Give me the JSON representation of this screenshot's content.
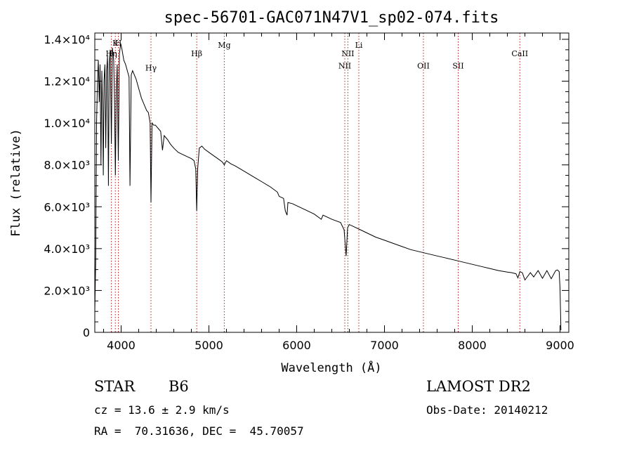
{
  "chart_data": {
    "type": "line",
    "title": "spec-56701-GAC071N47V1_sp02-074.fits",
    "xlabel": "Wavelength (Å)",
    "ylabel": "Flux (relative)",
    "xlim": [
      3700,
      9100
    ],
    "ylim": [
      0,
      14300
    ],
    "x_ticks": [
      {
        "value": 4000,
        "label": "4000"
      },
      {
        "value": 5000,
        "label": "5000"
      },
      {
        "value": 6000,
        "label": "6000"
      },
      {
        "value": 7000,
        "label": "7000"
      },
      {
        "value": 8000,
        "label": "8000"
      },
      {
        "value": 9000,
        "label": "9000"
      }
    ],
    "y_ticks": [
      {
        "value": 0,
        "label": "0"
      },
      {
        "value": 2000,
        "label": "2.0×10³"
      },
      {
        "value": 4000,
        "label": "4.0×10³"
      },
      {
        "value": 6000,
        "label": "6.0×10³"
      },
      {
        "value": 8000,
        "label": "8.0×10³"
      },
      {
        "value": 10000,
        "label": "1.0×10⁴"
      },
      {
        "value": 12000,
        "label": "1.2×10⁴"
      },
      {
        "value": 14000,
        "label": "1.4×10⁴"
      }
    ],
    "lines": [
      {
        "wavelength": 3889,
        "label": "Hη",
        "label_y": 13200
      },
      {
        "wavelength": 3934,
        "label": "K",
        "label_y": 13700
      },
      {
        "wavelength": 3968,
        "label": "H",
        "label_y": 13700
      },
      {
        "wavelength": 4340,
        "label": "Hγ",
        "label_y": 12500
      },
      {
        "wavelength": 4861,
        "label": "Hβ",
        "label_y": 13200
      },
      {
        "wavelength": 5175,
        "label": "Mg",
        "label_y": 13600
      },
      {
        "wavelength": 6548,
        "label": "NII",
        "label_y": 12600
      },
      {
        "wavelength": 6583,
        "label": "NII",
        "label_y": 13200
      },
      {
        "wavelength": 6708,
        "label": "Li",
        "label_y": 13600
      },
      {
        "wavelength": 7444,
        "label": "OII",
        "label_y": 12600
      },
      {
        "wavelength": 7840,
        "label": "SII",
        "label_y": 12600
      },
      {
        "wavelength": 8542,
        "label": "CaII",
        "label_y": 13200
      }
    ],
    "series": [
      {
        "x": [
          3700,
          3710,
          3720,
          3730,
          3740,
          3750,
          3760,
          3770,
          3780,
          3790,
          3797,
          3805,
          3815,
          3825,
          3835,
          3845,
          3855,
          3865,
          3875,
          3889,
          3900,
          3915,
          3925,
          3934,
          3945,
          3955,
          3968,
          3980,
          3995,
          4010,
          4030,
          4050,
          4070,
          4090,
          4101,
          4115,
          4130,
          4150,
          4170,
          4190,
          4210,
          4230,
          4250,
          4270,
          4290,
          4310,
          4330,
          4340,
          4352,
          4370,
          4390,
          4410,
          4430,
          4450,
          4471,
          4490,
          4510,
          4530,
          4560,
          4600,
          4650,
          4700,
          4750,
          4800,
          4830,
          4850,
          4861,
          4872,
          4890,
          4920,
          4950,
          5000,
          5050,
          5100,
          5150,
          5175,
          5200,
          5250,
          5300,
          5400,
          5500,
          5600,
          5700,
          5780,
          5800,
          5850,
          5870,
          5890,
          5900,
          5950,
          6000,
          6100,
          6200,
          6280,
          6300,
          6400,
          6500,
          6540,
          6563,
          6580,
          6600,
          6700,
          6800,
          6900,
          7000,
          7100,
          7200,
          7300,
          7400,
          7500,
          7600,
          7700,
          7800,
          7900,
          8000,
          8100,
          8200,
          8300,
          8400,
          8450,
          8498,
          8520,
          8542,
          8570,
          8600,
          8662,
          8700,
          8750,
          8800,
          8850,
          8900,
          8950,
          8970,
          8990,
          9000,
          9010
        ],
        "y": [
          1000,
          3500,
          10000,
          12000,
          13000,
          11000,
          12800,
          8000,
          12500,
          10500,
          7500,
          12000,
          12800,
          8800,
          12500,
          13200,
          7000,
          12800,
          13500,
          9000,
          13600,
          13000,
          11000,
          7500,
          11500,
          12800,
          8200,
          13300,
          13800,
          13500,
          13000,
          12800,
          12500,
          12200,
          7000,
          12300,
          12500,
          12300,
          12100,
          11800,
          11500,
          11200,
          11000,
          10800,
          10600,
          10500,
          10000,
          6200,
          10000,
          9900,
          9900,
          9800,
          9700,
          9600,
          8700,
          9400,
          9300,
          9200,
          9000,
          8800,
          8600,
          8500,
          8400,
          8300,
          8200,
          7800,
          5800,
          7800,
          8800,
          8900,
          8750,
          8600,
          8450,
          8300,
          8150,
          8000,
          8200,
          8050,
          7950,
          7700,
          7450,
          7200,
          6950,
          6700,
          6500,
          6400,
          5800,
          5600,
          6200,
          6150,
          6050,
          5850,
          5650,
          5400,
          5600,
          5400,
          5250,
          4900,
          3650,
          5000,
          5150,
          4950,
          4750,
          4550,
          4400,
          4250,
          4100,
          3950,
          3850,
          3750,
          3650,
          3550,
          3450,
          3350,
          3250,
          3150,
          3050,
          2950,
          2880,
          2850,
          2800,
          2600,
          2900,
          2850,
          2500,
          2850,
          2650,
          2950,
          2580,
          2950,
          2560,
          2950,
          2980,
          2900,
          2100,
          100
        ]
      }
    ]
  },
  "info": {
    "class": "STAR",
    "subclass": "B6",
    "survey": "LAMOST DR2",
    "cz": "cz = 13.6 ± 2.9 km/s",
    "obs_date": "Obs-Date: 20140212",
    "radec": "RA =  70.31636, DEC =  45.70057"
  }
}
